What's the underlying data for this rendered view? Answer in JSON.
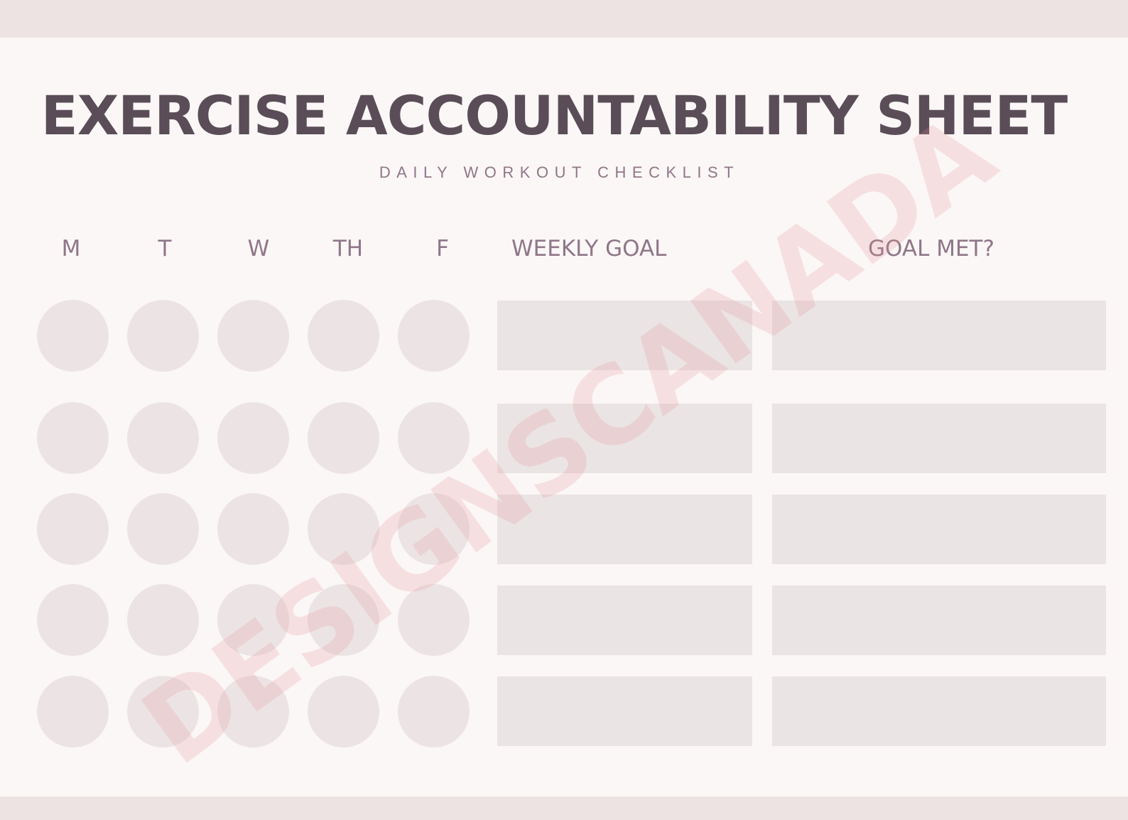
{
  "sheet": {
    "title": "EXERCISE ACCOUNTABILITY SHEET",
    "subtitle": "DAILY WORKOUT CHECKLIST",
    "columns": {
      "days": [
        "M",
        "T",
        "W",
        "TH",
        "F"
      ],
      "weekly_goal": "WEEKLY GOAL",
      "goal_met": "GOAL MET?"
    },
    "rows": [
      {
        "days_checked": [
          false,
          false,
          false,
          false,
          false
        ],
        "weekly_goal": "",
        "goal_met": ""
      },
      {
        "days_checked": [
          false,
          false,
          false,
          false,
          false
        ],
        "weekly_goal": "",
        "goal_met": ""
      },
      {
        "days_checked": [
          false,
          false,
          false,
          false,
          false
        ],
        "weekly_goal": "",
        "goal_met": ""
      },
      {
        "days_checked": [
          false,
          false,
          false,
          false,
          false
        ],
        "weekly_goal": "",
        "goal_met": ""
      },
      {
        "days_checked": [
          false,
          false,
          false,
          false,
          false
        ],
        "weekly_goal": "",
        "goal_met": ""
      }
    ]
  },
  "watermark": "DESIGNSCANADA",
  "colors": {
    "background": "#fbf7f6",
    "band": "#ede3e3",
    "title": "#5a4d58",
    "labels": "#8f7688",
    "circle": "#ece4e4",
    "box": "#ebe4e4",
    "watermark": "#e48c96"
  }
}
